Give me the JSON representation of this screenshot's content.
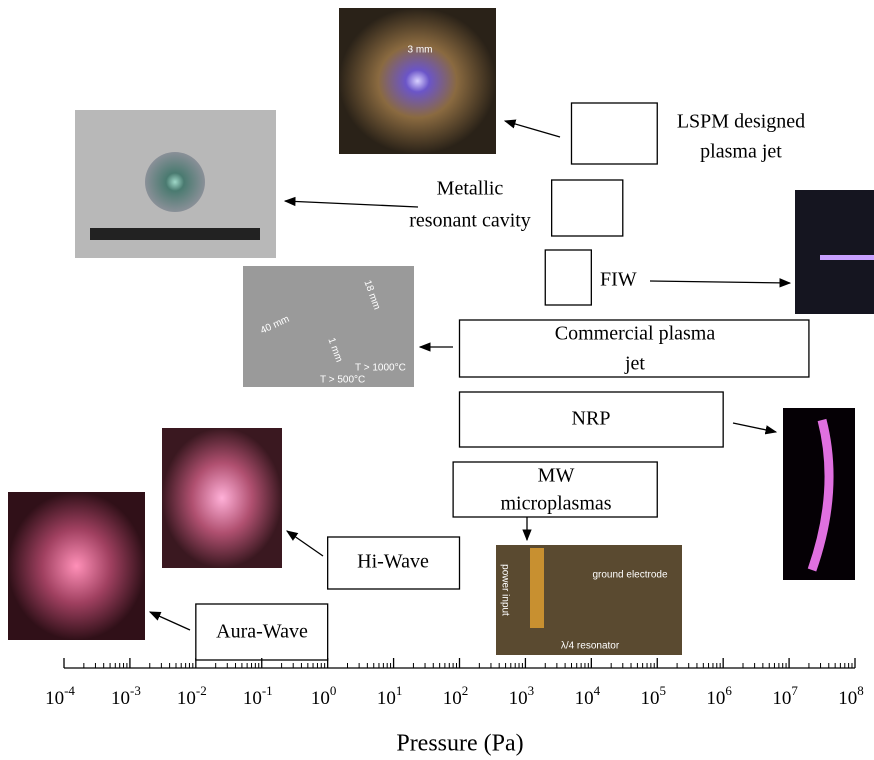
{
  "chart_data": {
    "type": "range",
    "x_label": "Pressure (Pa)",
    "xscale": "log",
    "xlim": [
      0.0001,
      100000000
    ],
    "xticks": [
      {
        "value": 0.0001,
        "label": "10",
        "exponent": "-4"
      },
      {
        "value": 0.001,
        "label": "10",
        "exponent": "-3"
      },
      {
        "value": 0.01,
        "label": "10",
        "exponent": "-2"
      },
      {
        "value": 0.1,
        "label": "10",
        "exponent": "-1"
      },
      {
        "value": 1,
        "label": "10",
        "exponent": "0"
      },
      {
        "value": 10,
        "label": "10",
        "exponent": "1"
      },
      {
        "value": 100,
        "label": "10",
        "exponent": "2"
      },
      {
        "value": 1000,
        "label": "10",
        "exponent": "3"
      },
      {
        "value": 10000,
        "label": "10",
        "exponent": "4"
      },
      {
        "value": 100000,
        "label": "10",
        "exponent": "5"
      },
      {
        "value": 1000000,
        "label": "10",
        "exponent": "6"
      },
      {
        "value": 10000000,
        "label": "10",
        "exponent": "7"
      },
      {
        "value": 100000000,
        "label": "10",
        "exponent": "8"
      }
    ],
    "series": [
      {
        "label_lines": [
          "LSPM designed",
          "plasma jet"
        ],
        "range": [
          5000,
          100000
        ]
      },
      {
        "label_lines": [
          "Metallic",
          "resonant cavity"
        ],
        "range": [
          2500,
          30000
        ]
      },
      {
        "label_lines": [
          "FIW"
        ],
        "range": [
          2000,
          10000
        ]
      },
      {
        "label_lines": [
          "Commercial plasma",
          "jet"
        ],
        "range": [
          100,
          20000000
        ]
      },
      {
        "label_lines": [
          "NRP"
        ],
        "range": [
          100,
          1000000
        ]
      },
      {
        "label_lines": [
          "MW",
          "microplasmas"
        ],
        "range": [
          80,
          100000
        ]
      },
      {
        "label_lines": [
          "Hi-Wave"
        ],
        "range": [
          1,
          100
        ]
      },
      {
        "label_lines": [
          "Aura-Wave"
        ],
        "range": [
          0.01,
          1
        ]
      }
    ],
    "annotations": [
      "3 mm",
      "40 mm",
      "1 mm",
      "18 mm",
      "T > 1000°C",
      "T > 500°C",
      "power input",
      "ground electrode",
      "λ/4 resonator"
    ]
  }
}
